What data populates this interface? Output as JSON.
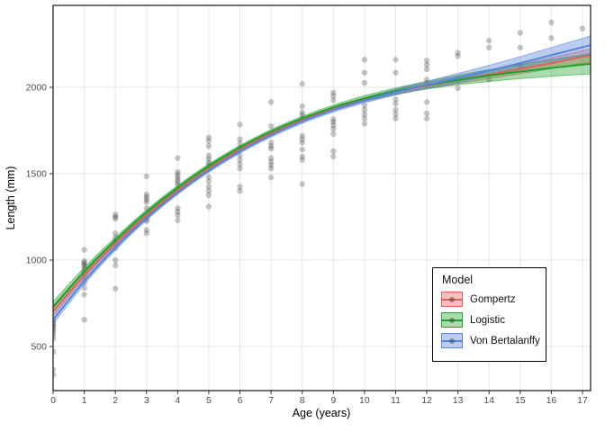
{
  "style": {
    "background": "#ffffff",
    "grid_color": "#e6e6e6",
    "panel_border_color": "#333333",
    "tick_color": "#333333",
    "tick_label_color": "#4d4d4d",
    "point_color": "#1d1d1d",
    "point_opacity": 0.25
  },
  "legend": {
    "title": "Model",
    "entries": [
      {
        "label": "Gompertz",
        "line": "#e0625c",
        "fill": "rgba(224,98,92,0.40)"
      },
      {
        "label": "Logistic",
        "line": "#1fa12b",
        "fill": "rgba(31,161,43,0.38)"
      },
      {
        "label": "Von Bertalanffy",
        "line": "#5585de",
        "fill": "rgba(85,133,222,0.40)"
      }
    ]
  },
  "chart_data": {
    "type": "scatter",
    "title": "",
    "xlabel": "Age (years)",
    "ylabel": "Length (mm)",
    "xlim": [
      0,
      17.3
    ],
    "ylim": [
      245,
      2475
    ],
    "x_ticks": [
      0,
      1,
      2,
      3,
      4,
      5,
      6,
      7,
      8,
      9,
      10,
      11,
      12,
      13,
      14,
      15,
      16,
      17
    ],
    "y_ticks": [
      500,
      1000,
      1500,
      2000
    ],
    "grid": true,
    "legend_position": "inside-bottom-right",
    "points": [
      {
        "age": 0,
        "values": [
          655,
          645,
          635,
          625,
          615,
          605,
          595,
          580,
          565,
          545,
          470,
          365,
          335
        ]
      },
      {
        "age": 1,
        "values": [
          1060,
          995,
          985,
          975,
          965,
          950,
          935,
          920,
          900,
          870,
          840,
          800,
          655
        ]
      },
      {
        "age": 2,
        "values": [
          1265,
          1250,
          1240,
          1155,
          1130,
          1110,
          1095,
          1070,
          1000,
          970,
          835
        ]
      },
      {
        "age": 3,
        "values": [
          1485,
          1380,
          1365,
          1350,
          1335,
          1300,
          1250,
          1235,
          1225,
          1175,
          1155
        ]
      },
      {
        "age": 4,
        "values": [
          1590,
          1510,
          1495,
          1480,
          1465,
          1450,
          1435,
          1300,
          1280,
          1260,
          1230
        ]
      },
      {
        "age": 5,
        "values": [
          1710,
          1690,
          1660,
          1605,
          1585,
          1565,
          1550,
          1480,
          1455,
          1425,
          1400,
          1375,
          1310
        ]
      },
      {
        "age": 6,
        "values": [
          1785,
          1700,
          1675,
          1650,
          1605,
          1580,
          1555,
          1530,
          1425,
          1400
        ]
      },
      {
        "age": 7,
        "values": [
          1915,
          1775,
          1680,
          1660,
          1645,
          1590,
          1570,
          1550,
          1530,
          1478
        ]
      },
      {
        "age": 8,
        "values": [
          2020,
          1890,
          1855,
          1840,
          1820,
          1720,
          1700,
          1680,
          1640,
          1600,
          1580,
          1440
        ]
      },
      {
        "age": 9,
        "values": [
          1970,
          1950,
          1925,
          1815,
          1800,
          1780,
          1760,
          1730,
          1630,
          1600
        ]
      },
      {
        "age": 10,
        "values": [
          2160,
          2085,
          2025,
          1895,
          1870,
          1845,
          1820,
          1790
        ]
      },
      {
        "age": 11,
        "values": [
          2160,
          2085,
          1930,
          1905,
          1870,
          1845,
          1820
        ]
      },
      {
        "age": 12,
        "values": [
          2155,
          2130,
          2105,
          2045,
          2025,
          1915,
          1850,
          1820
        ]
      },
      {
        "age": 13,
        "values": [
          2200,
          2180,
          2045,
          1995
        ]
      },
      {
        "age": 14,
        "values": [
          2270,
          2230,
          2045
        ]
      },
      {
        "age": 15,
        "values": [
          2315,
          2230,
          2125
        ]
      },
      {
        "age": 16,
        "values": [
          2375,
          2285
        ]
      },
      {
        "age": 17,
        "values": [
          2340
        ]
      }
    ],
    "curves": {
      "ages": [
        0,
        1,
        2,
        3,
        4,
        5,
        6,
        7,
        8,
        9,
        10,
        11,
        12,
        13,
        14,
        15,
        16,
        17,
        17.3
      ],
      "series": [
        {
          "name": "Gompertz",
          "color": "#e0625c",
          "fill": "rgba(224,98,92,0.40)",
          "values": [
            700,
            912,
            1096,
            1258,
            1402,
            1528,
            1638,
            1732,
            1810,
            1875,
            1928,
            1972,
            2009,
            2042,
            2074,
            2106,
            2140,
            2176,
            2187
          ],
          "ci_half": [
            22,
            16,
            12,
            10,
            9,
            9,
            9,
            9,
            10,
            11,
            12,
            14,
            17,
            20,
            24,
            28,
            32,
            37,
            39
          ]
        },
        {
          "name": "Logistic",
          "color": "#1fa12b",
          "fill": "rgba(31,161,43,0.38)",
          "values": [
            730,
            935,
            1115,
            1278,
            1420,
            1545,
            1652,
            1744,
            1820,
            1884,
            1936,
            1978,
            2012,
            2042,
            2068,
            2091,
            2112,
            2131,
            2137
          ],
          "ci_half": [
            30,
            22,
            16,
            13,
            12,
            11,
            11,
            11,
            12,
            13,
            15,
            18,
            22,
            28,
            34,
            41,
            48,
            56,
            59
          ]
        },
        {
          "name": "Von Bertalanffy",
          "color": "#5585de",
          "fill": "rgba(85,133,222,0.40)",
          "values": [
            655,
            878,
            1072,
            1242,
            1390,
            1518,
            1628,
            1722,
            1802,
            1868,
            1924,
            1972,
            2014,
            2054,
            2096,
            2140,
            2186,
            2232,
            2246
          ],
          "ci_half": [
            25,
            18,
            14,
            11,
            10,
            10,
            10,
            10,
            11,
            12,
            14,
            17,
            21,
            26,
            31,
            37,
            44,
            51,
            54
          ]
        }
      ]
    }
  }
}
